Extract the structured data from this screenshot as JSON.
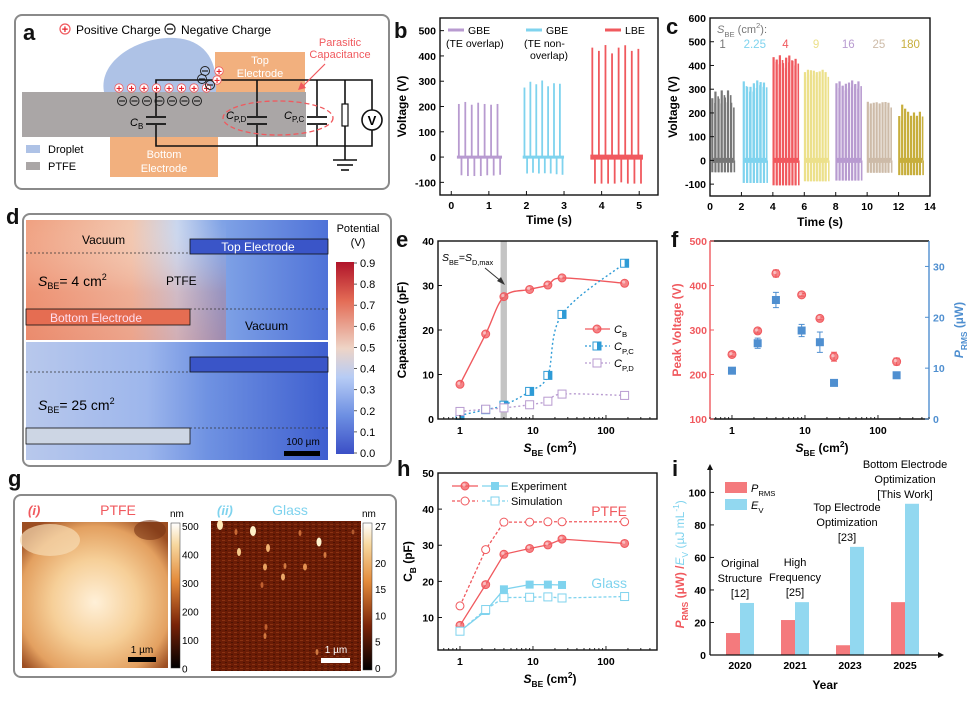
{
  "panels": {
    "a": {
      "letter": "a",
      "legend_pos": "Positive Charge",
      "legend_neg": "Negative Charge",
      "droplet_label": "Droplet",
      "ptfe_label": "PTFE",
      "top_electrode": [
        "Top",
        "Electrode"
      ],
      "bottom_electrode": [
        "Bottom",
        "Electrode"
      ],
      "parasitic": [
        "Parasitic",
        "Capacitance"
      ],
      "cb": "C",
      "cb_sub": "B",
      "cpd": "C",
      "cpd_sub": "P,D",
      "cpc": "C",
      "cpc_sub": "P,C",
      "voltmeter": "V"
    },
    "d": {
      "letter": "d",
      "vacuum": "Vacuum",
      "ptfe": "PTFE",
      "top_electrode": "Top Electrode",
      "bottom_electrode": "Bottom Electrode",
      "s4_label": "S",
      "s4_sub": "BE",
      "s4_value": "= 4 cm",
      "s25_value": "= 25 cm",
      "sup": "2",
      "scale": "100 µm",
      "colorbar_title": [
        "Potential",
        "(V)"
      ],
      "colorbar_ticks": [
        "0.9",
        "0.8",
        "0.7",
        "0.6",
        "0.5",
        "0.4",
        "0.3",
        "0.2",
        "0.1",
        "0.0"
      ]
    },
    "g": {
      "letter": "g",
      "i_tag": "(i)",
      "i_title": "PTFE",
      "ii_tag": "(ii)",
      "ii_title": "Glass",
      "unit": "nm",
      "i_ticks": [
        "500",
        "400",
        "300",
        "200",
        "100",
        "0"
      ],
      "ii_ticks": [
        "27",
        "20",
        "15",
        "10",
        "5",
        "0"
      ],
      "scale": "1 µm"
    }
  },
  "colors": {
    "red": "#f0595e",
    "purple": "#b89bd0",
    "cyan": "#7fd3ee",
    "blue": "#4f8fd0",
    "gray": "#777777",
    "yellow": "#ece08a",
    "tan": "#cdbba8",
    "olive": "#c7ae3c",
    "electrode": "#f2b07e",
    "droplet": "#aec2e6",
    "ptfe": "#aaa6a6"
  },
  "chart_data": [
    {
      "id": "b",
      "letter": "b",
      "type": "line",
      "title": "",
      "xlabel": "Time (s)",
      "ylabel": "Voltage (V)",
      "xlim": [
        -0.3,
        5.5
      ],
      "ylim": [
        -150,
        550
      ],
      "xticks": [
        "0",
        "1",
        "2",
        "3",
        "4",
        "5"
      ],
      "yticks": [
        "-100",
        "0",
        "100",
        "200",
        "300",
        "400",
        "500"
      ],
      "series": [
        {
          "name": "GBE",
          "name2": "(TE overlap)",
          "color": "#b89bd0",
          "t_start": 0.15,
          "t_end": 1.35,
          "peaks": [
            210,
            218,
            207,
            215,
            210,
            207,
            210
          ],
          "troughs": [
            -72,
            -75,
            -75,
            -75,
            -72,
            -73,
            -70
          ]
        },
        {
          "name": "GBE",
          "name2": "(TE non-",
          "name3": "overlap)",
          "color": "#7fd3ee",
          "t_start": 1.9,
          "t_end": 3.0,
          "peaks": [
            275,
            298,
            288,
            303,
            280,
            292,
            290
          ],
          "troughs": [
            -65,
            -62,
            -65,
            -64,
            -65,
            -68,
            -70
          ]
        },
        {
          "name": "LBE",
          "color": "#f0595e",
          "t_start": 3.7,
          "t_end": 5.1,
          "peaks": [
            433,
            420,
            443,
            410,
            433,
            442,
            420,
            428
          ],
          "troughs": [
            -105,
            -105,
            -105,
            -105,
            -100,
            -105,
            -105,
            -105
          ]
        }
      ]
    },
    {
      "id": "c",
      "letter": "c",
      "type": "line",
      "xlabel": "Time (s)",
      "ylabel": "Voltage (V)",
      "xlim": [
        0,
        14
      ],
      "ylim": [
        -150,
        600
      ],
      "xticks": [
        "0",
        "2",
        "4",
        "6",
        "8",
        "10",
        "12",
        "14"
      ],
      "yticks": [
        "-100",
        "0",
        "100",
        "200",
        "300",
        "400",
        "500",
        "600"
      ],
      "legend_title": "S",
      "legend_sub": "BE",
      "legend_unit": " (cm",
      "legend_tail": "):",
      "series": [
        {
          "name": "1",
          "color": "#777777",
          "t_start": 0.1,
          "t_end": 1.5,
          "peaks": [
            262,
            290,
            260,
            295,
            265,
            295,
            243
          ],
          "trough": -50
        },
        {
          "name": "2.25",
          "color": "#7fd3ee",
          "t_start": 2.1,
          "t_end": 3.6,
          "peaks": [
            333,
            310,
            310,
            325,
            337,
            330,
            328
          ],
          "trough": -95
        },
        {
          "name": "4",
          "color": "#f0595e",
          "t_start": 4.0,
          "t_end": 5.6,
          "peaks": [
            435,
            425,
            443,
            410,
            433,
            442,
            420,
            428
          ],
          "trough": -105
        },
        {
          "name": "9",
          "color": "#ece08a",
          "t_start": 6.0,
          "t_end": 7.5,
          "peaks": [
            372,
            382,
            380,
            378,
            372,
            375,
            382,
            372
          ],
          "trough": -88
        },
        {
          "name": "16",
          "color": "#b89bd0",
          "t_start": 8.0,
          "t_end": 9.6,
          "peaks": [
            325,
            333,
            315,
            323,
            328,
            337,
            322,
            333
          ],
          "trough": -85
        },
        {
          "name": "25",
          "color": "#cdbba8",
          "t_start": 10.0,
          "t_end": 11.5,
          "peaks": [
            247,
            240,
            243,
            245,
            240,
            245,
            246,
            243
          ],
          "trough": -52
        },
        {
          "name": "180",
          "color": "#c7ae3c",
          "t_start": 12.0,
          "t_end": 13.5,
          "peaks": [
            187,
            235,
            218,
            205,
            188,
            202,
            188,
            205
          ],
          "trough": -62
        }
      ]
    },
    {
      "id": "e",
      "letter": "e",
      "type": "line",
      "xlabel": "S",
      "xlabel_sub": "BE",
      "xlabel_unit": " (cm",
      "xlabel_tail": ")",
      "ylabel": "Capacitance (pF)",
      "xscale": "log",
      "xlim": [
        0.5,
        500
      ],
      "ylim": [
        0,
        40
      ],
      "xticks": [
        1,
        10,
        100
      ],
      "xtick_labels": [
        "1",
        "10",
        "100"
      ],
      "yticks": [
        "0",
        "10",
        "20",
        "30",
        "40"
      ],
      "annotation": "S",
      "annotation_sub": "BE",
      "annotation_eq": "=S",
      "annotation_sub2": "D,max",
      "shade_x": [
        3.6,
        4.4
      ],
      "x": [
        1,
        2.25,
        4,
        9,
        16,
        25,
        180
      ],
      "series": [
        {
          "name": "C",
          "sub": "B",
          "color": "#f0595e",
          "style": "solid",
          "marker": "circle",
          "values": [
            7.8,
            19.1,
            27.5,
            29.1,
            30.1,
            31.7,
            30.5
          ]
        },
        {
          "name": "C",
          "sub": "P,C",
          "color": "#2e9bd6",
          "style": "dotted",
          "marker": "square-half",
          "values": [
            0.8,
            2.1,
            3.1,
            6.2,
            9.8,
            23.5,
            35.0
          ]
        },
        {
          "name": "C",
          "sub": "P,D",
          "color": "#b89bd0",
          "style": "dotted",
          "marker": "square-open",
          "values": [
            1.7,
            2.2,
            2.5,
            3.2,
            4.0,
            5.6,
            5.3
          ]
        }
      ]
    },
    {
      "id": "f",
      "letter": "f",
      "type": "scatter",
      "xlabel": "S",
      "xlabel_sub": "BE",
      "xlabel_unit": " (cm",
      "xlabel_tail": ")",
      "xscale": "log",
      "xlim": [
        0.5,
        500
      ],
      "xticks": [
        1,
        10,
        100
      ],
      "xtick_labels": [
        "1",
        "10",
        "100"
      ],
      "ylabel_left": "Peak Voltage (V)",
      "ylim_left": [
        100,
        500
      ],
      "yticks_left": [
        "100",
        "200",
        "300",
        "400",
        "500"
      ],
      "ylabel_right": "P",
      "ylabel_right_sub": "RMS",
      "ylabel_right_unit": " (µW)",
      "ylim_right": [
        0,
        35
      ],
      "yticks_right": [
        "0",
        "10",
        "20",
        "30"
      ],
      "x": [
        1,
        2.25,
        4,
        9,
        16,
        25,
        180
      ],
      "series": [
        {
          "name": "Peak Voltage",
          "axis": "left",
          "color": "#f0595e",
          "marker": "circle",
          "values": [
            245,
            298,
            427,
            379,
            326,
            240,
            229
          ],
          "err": [
            5,
            5,
            8,
            3,
            3,
            10,
            8
          ]
        },
        {
          "name": "P_RMS",
          "axis": "right",
          "color": "#4f8fd0",
          "marker": "square",
          "values": [
            9.5,
            14.9,
            23.4,
            17.4,
            15.1,
            7.1,
            8.6
          ],
          "err": [
            0.4,
            1.0,
            1.5,
            1.2,
            2.0,
            0.3,
            0.6
          ]
        }
      ]
    },
    {
      "id": "h",
      "letter": "h",
      "type": "line",
      "xlabel": "S",
      "xlabel_sub": "BE",
      "xlabel_unit": " (cm",
      "xlabel_tail": ")",
      "ylabel": "C",
      "ylabel_sub": "B",
      "ylabel_unit": " (pF)",
      "xscale": "log",
      "xlim": [
        0.5,
        500
      ],
      "ylim": [
        1,
        50
      ],
      "xticks": [
        1,
        10,
        100
      ],
      "xtick_labels": [
        "1",
        "10",
        "100"
      ],
      "yticks": [
        "10",
        "20",
        "30",
        "40",
        "50"
      ],
      "legend": [
        "Experiment",
        "Simulation"
      ],
      "annotations": [
        "PTFE",
        "Glass"
      ],
      "series": [
        {
          "name": "PTFE Experiment",
          "color": "#f0595e",
          "style": "solid",
          "marker": "circle",
          "x": [
            1,
            2.25,
            4,
            9,
            16,
            25,
            180
          ],
          "values": [
            7.8,
            19.1,
            27.5,
            29.1,
            30.1,
            31.7,
            30.5
          ]
        },
        {
          "name": "PTFE Simulation",
          "color": "#f0595e",
          "style": "dashed",
          "marker": "circle-open",
          "x": [
            1,
            2.25,
            4,
            9,
            16,
            25,
            180
          ],
          "values": [
            13.2,
            28.8,
            36.4,
            36.4,
            36.5,
            36.5,
            36.5
          ]
        },
        {
          "name": "Glass Experiment",
          "color": "#7fd3ee",
          "style": "solid",
          "marker": "square",
          "x": [
            1,
            2.25,
            4,
            9,
            16,
            25
          ],
          "values": [
            6.2,
            11.8,
            17.8,
            19.1,
            19.1,
            19.0
          ]
        },
        {
          "name": "Glass Simulation",
          "color": "#7fd3ee",
          "style": "dashed",
          "marker": "square-open",
          "x": [
            1,
            2.25,
            4,
            9,
            16,
            25,
            180
          ],
          "values": [
            6.2,
            12.2,
            15.5,
            15.6,
            15.7,
            15.4,
            15.8
          ]
        }
      ]
    },
    {
      "id": "i",
      "letter": "i",
      "type": "bar",
      "xlabel": "Year",
      "ylabel_a": "P",
      "ylabel_a_sub": "RMS",
      "ylabel_a_unit": " (µW) / ",
      "ylabel_b": "E",
      "ylabel_b_sub": "V",
      "ylabel_b_unit": " (µJ mL",
      "ylabel_b_sup": "-1",
      "ylabel_b_tail": ")",
      "ylim": [
        0,
        115
      ],
      "yticks": [
        "0",
        "20",
        "40",
        "60",
        "80",
        "100"
      ],
      "categories": [
        "2020",
        "2021",
        "2023",
        "2025"
      ],
      "series": [
        {
          "name": "P",
          "sub": "RMS",
          "color": "#f47a7d",
          "values": [
            13.5,
            21.5,
            6.0,
            32.5
          ]
        },
        {
          "name": "E",
          "sub": "V",
          "color": "#92d8f0",
          "values": [
            32,
            32.5,
            66.5,
            93
          ]
        }
      ],
      "annotations": [
        [
          "Original",
          "Structure",
          "[12]"
        ],
        [
          "High",
          "Frequency",
          "[25]"
        ],
        [
          "Top Electrode",
          "Optimization",
          "[23]"
        ],
        [
          "Bottom Electrode",
          "Optimization",
          "[This Work]"
        ]
      ]
    }
  ]
}
